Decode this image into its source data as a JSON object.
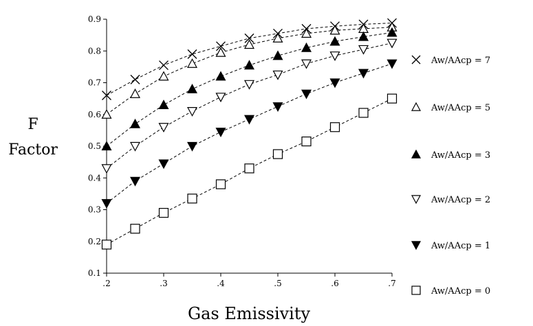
{
  "chart_data": {
    "type": "line",
    "title": "",
    "xlabel": "Gas Emissivity",
    "ylabel_line1": "F",
    "ylabel_line2": "Factor",
    "xlim": [
      0.2,
      0.7
    ],
    "ylim": [
      0.1,
      0.9
    ],
    "x_ticks": [
      0.2,
      0.3,
      0.4,
      0.5,
      0.6,
      0.7
    ],
    "x_tick_labels": [
      ".2",
      ".3",
      ".4",
      ".5",
      ".6",
      ".7"
    ],
    "y_ticks": [
      0.1,
      0.2,
      0.3,
      0.4,
      0.5,
      0.6,
      0.7,
      0.8,
      0.9
    ],
    "y_tick_labels": [
      "0.1",
      "0.2",
      "0.3",
      "0.4",
      "0.5",
      "0.6",
      "0.7",
      "0.8",
      "0.9"
    ],
    "grid": false,
    "legend_position": "right",
    "x": [
      0.2,
      0.25,
      0.3,
      0.35,
      0.4,
      0.45,
      0.5,
      0.55,
      0.6,
      0.65,
      0.7
    ],
    "series": [
      {
        "name": "Aw/AAcp = 7",
        "marker": "x",
        "values": [
          0.66,
          0.71,
          0.755,
          0.79,
          0.815,
          0.84,
          0.855,
          0.87,
          0.878,
          0.884,
          0.888
        ]
      },
      {
        "name": "Aw/AAcp = 5",
        "marker": "triangle-up-open",
        "values": [
          0.6,
          0.665,
          0.72,
          0.76,
          0.795,
          0.82,
          0.84,
          0.855,
          0.865,
          0.87,
          0.875
        ]
      },
      {
        "name": "Aw/AAcp = 3",
        "marker": "triangle-up-filled",
        "values": [
          0.5,
          0.57,
          0.63,
          0.68,
          0.72,
          0.755,
          0.785,
          0.81,
          0.83,
          0.845,
          0.858
        ]
      },
      {
        "name": "Aw/AAcp = 2",
        "marker": "triangle-down-open",
        "values": [
          0.43,
          0.5,
          0.56,
          0.61,
          0.655,
          0.695,
          0.725,
          0.76,
          0.785,
          0.805,
          0.825
        ]
      },
      {
        "name": "Aw/AAcp = 1",
        "marker": "triangle-down-filled",
        "values": [
          0.32,
          0.39,
          0.445,
          0.5,
          0.545,
          0.585,
          0.625,
          0.665,
          0.7,
          0.73,
          0.76
        ]
      },
      {
        "name": "Aw/AAcp = 0",
        "marker": "square-open",
        "values": [
          0.19,
          0.24,
          0.29,
          0.335,
          0.38,
          0.43,
          0.475,
          0.515,
          0.56,
          0.605,
          0.65
        ]
      }
    ]
  }
}
